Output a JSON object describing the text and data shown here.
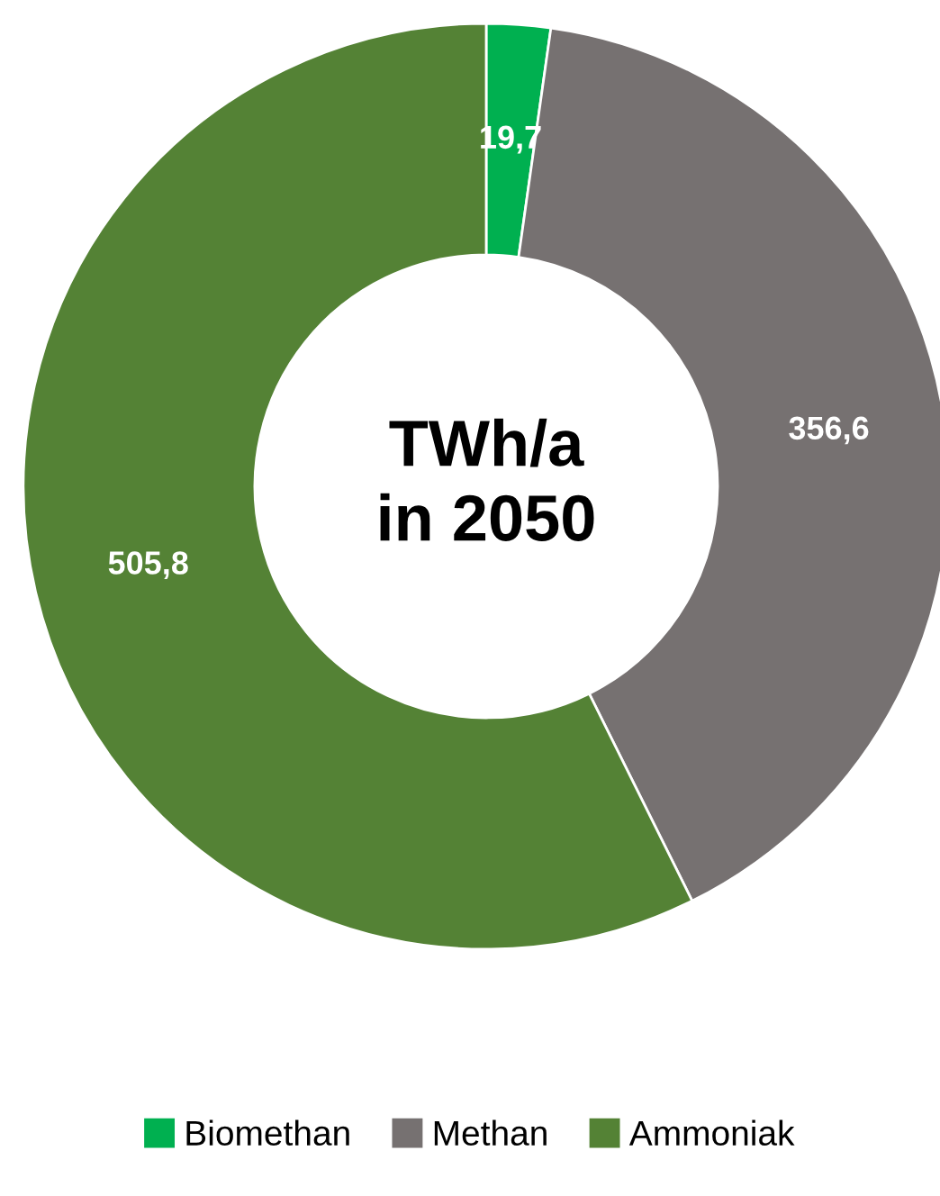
{
  "chart_data": {
    "type": "donut",
    "title": "TWh/a\nin 2050",
    "categories": [
      "Biomethan",
      "Methan",
      "Ammoniak"
    ],
    "values": [
      19.7,
      356.6,
      505.8
    ],
    "colors": [
      "#00b050",
      "#767171",
      "#548235"
    ],
    "value_labels": [
      "19,7",
      "356,6",
      "505,8"
    ],
    "legend": "bottom"
  }
}
